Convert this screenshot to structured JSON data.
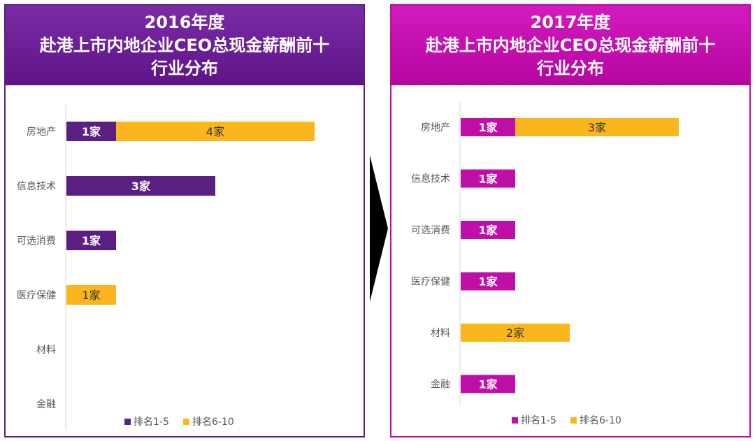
{
  "colors": {
    "rank_1_5_2016": "#5b1f82",
    "rank_1_5_2017": "#bf0fa8",
    "rank_6_10": "#fbb61d",
    "left_border": "#5b2080",
    "right_border": "#bb0aa6"
  },
  "legend": {
    "item1": "排名1-5",
    "item2": "排名6-10"
  },
  "chart_data": [
    {
      "type": "bar",
      "orientation": "horizontal",
      "stacked": true,
      "title_lines": [
        "2016年度",
        "赴港上市内地企业CEO总现金薪酬前十",
        "行业分布"
      ],
      "categories": [
        "房地产",
        "信息技术",
        "可选消费",
        "医疗保健",
        "材料",
        "金融"
      ],
      "series": [
        {
          "name": "排名1-5",
          "values": [
            1,
            3,
            1,
            0,
            0,
            0
          ],
          "labels": [
            "1家",
            "3家",
            "1家",
            "",
            "",
            ""
          ]
        },
        {
          "name": "排名6-10",
          "values": [
            4,
            0,
            0,
            1,
            0,
            0
          ],
          "labels": [
            "4家",
            "",
            "",
            "1家",
            "",
            ""
          ]
        }
      ],
      "xlim": [
        0,
        5
      ],
      "grid": false,
      "legend_position": "bottom"
    },
    {
      "type": "bar",
      "orientation": "horizontal",
      "stacked": true,
      "title_lines": [
        "2017年度",
        "赴港上市内地企业CEO总现金薪酬前十",
        "行业分布"
      ],
      "categories": [
        "房地产",
        "信息技术",
        "可选消费",
        "医疗保健",
        "材料",
        "金融"
      ],
      "series": [
        {
          "name": "排名1-5",
          "values": [
            1,
            1,
            1,
            1,
            0,
            1
          ],
          "labels": [
            "1家",
            "1家",
            "1家",
            "1家",
            "",
            "1家"
          ]
        },
        {
          "name": "排名6-10",
          "values": [
            3,
            0,
            0,
            0,
            2,
            0
          ],
          "labels": [
            "3家",
            "",
            "",
            "",
            "2家",
            ""
          ]
        }
      ],
      "xlim": [
        0,
        4
      ],
      "grid": false,
      "legend_position": "bottom"
    }
  ]
}
